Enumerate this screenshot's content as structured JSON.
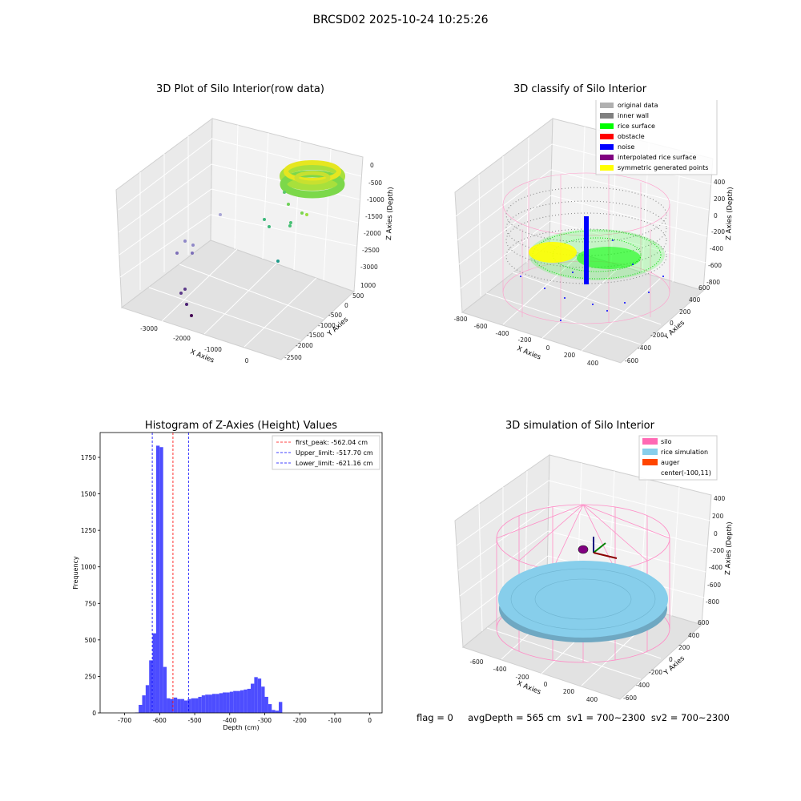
{
  "figure_title": "BRCSD02 2025-10-24 10:25:26",
  "footer_text": "flag = 0     avgDepth = 565 cm  sv1 = 700~2300  sv2 = 700~2300",
  "chart_data": [
    {
      "type": "scatter",
      "title": "3D Plot of Silo Interior(row data)",
      "xlabel": "X Axies",
      "ylabel": "Y Axies",
      "zlabel": "Z Axies (Depth)",
      "x_ticks": [
        "-3000",
        "-2000",
        "-1000",
        "0"
      ],
      "y_ticks": [
        "1000",
        "500",
        "0",
        "-500",
        "-1000",
        "-1500",
        "-2000",
        "-2500"
      ],
      "z_ticks": [
        "0",
        "-500",
        "-1000",
        "-1500",
        "-2000",
        "-2500",
        "-3000"
      ],
      "grid": true,
      "notes": "dense ring of rice-surface points near depth -500 colored yellow to green; sparse outlier points down to about -3000 colored teal to purple"
    },
    {
      "type": "scatter",
      "title": "3D classify of Silo Interior",
      "xlabel": "X Axies",
      "ylabel": "Y Axies",
      "zlabel": "Z Axies (Depth)",
      "x_ticks": [
        "-800",
        "-600",
        "-400",
        "-200",
        "0",
        "200",
        "400"
      ],
      "y_ticks": [
        "600",
        "400",
        "200",
        "0",
        "-200",
        "-400",
        "-600"
      ],
      "z_ticks": [
        "400",
        "200",
        "0",
        "-200",
        "-400",
        "-600",
        "-800"
      ],
      "legend": [
        {
          "label": "original data",
          "color": "#b0b0b0"
        },
        {
          "label": "inner wall",
          "color": "#808080"
        },
        {
          "label": "rice surface",
          "color": "#00ff00"
        },
        {
          "label": "obstacle",
          "color": "#ff0000"
        },
        {
          "label": "noise",
          "color": "#0000ff"
        },
        {
          "label": "interpolated rice surface",
          "color": "#800080"
        },
        {
          "label": "symmetric generated points",
          "color": "#ffff00"
        }
      ],
      "legend_position": "top-right",
      "grid": true
    },
    {
      "type": "bar",
      "title": "Histogram of Z-Axies (Height) Values",
      "xlabel": "Depth (cm)",
      "ylabel": "Frequency",
      "xlim": [
        -770,
        35
      ],
      "ylim": [
        0,
        1920
      ],
      "x_ticks": [
        -700,
        -600,
        -500,
        -400,
        -300,
        -200,
        -100,
        0
      ],
      "y_ticks": [
        0,
        250,
        500,
        750,
        1000,
        1250,
        1500,
        1750
      ],
      "bar_color": "#4d4dff",
      "bin_start": -670,
      "bin_width": 10,
      "values": [
        3,
        55,
        120,
        190,
        360,
        545,
        1830,
        1820,
        315,
        100,
        95,
        105,
        95,
        95,
        85,
        95,
        100,
        100,
        110,
        120,
        125,
        125,
        130,
        130,
        135,
        140,
        140,
        145,
        150,
        150,
        155,
        160,
        165,
        200,
        245,
        235,
        180,
        110,
        60,
        20,
        15,
        75
      ],
      "vlines": [
        {
          "label": "first_peak: -562.04 cm",
          "value": -562.04,
          "color": "#ff0000"
        },
        {
          "label": "Upper_limit: -517.70 cm",
          "value": -517.7,
          "color": "#0000ff"
        },
        {
          "label": "Lower_limit: -621.16 cm",
          "value": -621.16,
          "color": "#0000ff"
        }
      ],
      "legend_position": "top-right",
      "grid": false
    },
    {
      "type": "scatter",
      "title": "3D simulation of Silo Interior",
      "xlabel": "X Axies",
      "ylabel": "Y Axies",
      "zlabel": "Z Axies (Depth)",
      "x_ticks": [
        "-600",
        "-400",
        "-200",
        "0",
        "200",
        "400"
      ],
      "y_ticks": [
        "600",
        "400",
        "200",
        "0",
        "-200",
        "-400",
        "-600"
      ],
      "z_ticks": [
        "400",
        "200",
        "0",
        "-200",
        "-400",
        "-600",
        "-800"
      ],
      "legend": [
        {
          "label": "silo",
          "color": "#ff69b4"
        },
        {
          "label": "rice simulation",
          "color": "#87ceeb"
        },
        {
          "label": "auger",
          "color": "#ff4500"
        },
        {
          "label": "center(-100,11)",
          "color": ""
        }
      ],
      "legend_position": "top-right",
      "grid": true
    }
  ]
}
